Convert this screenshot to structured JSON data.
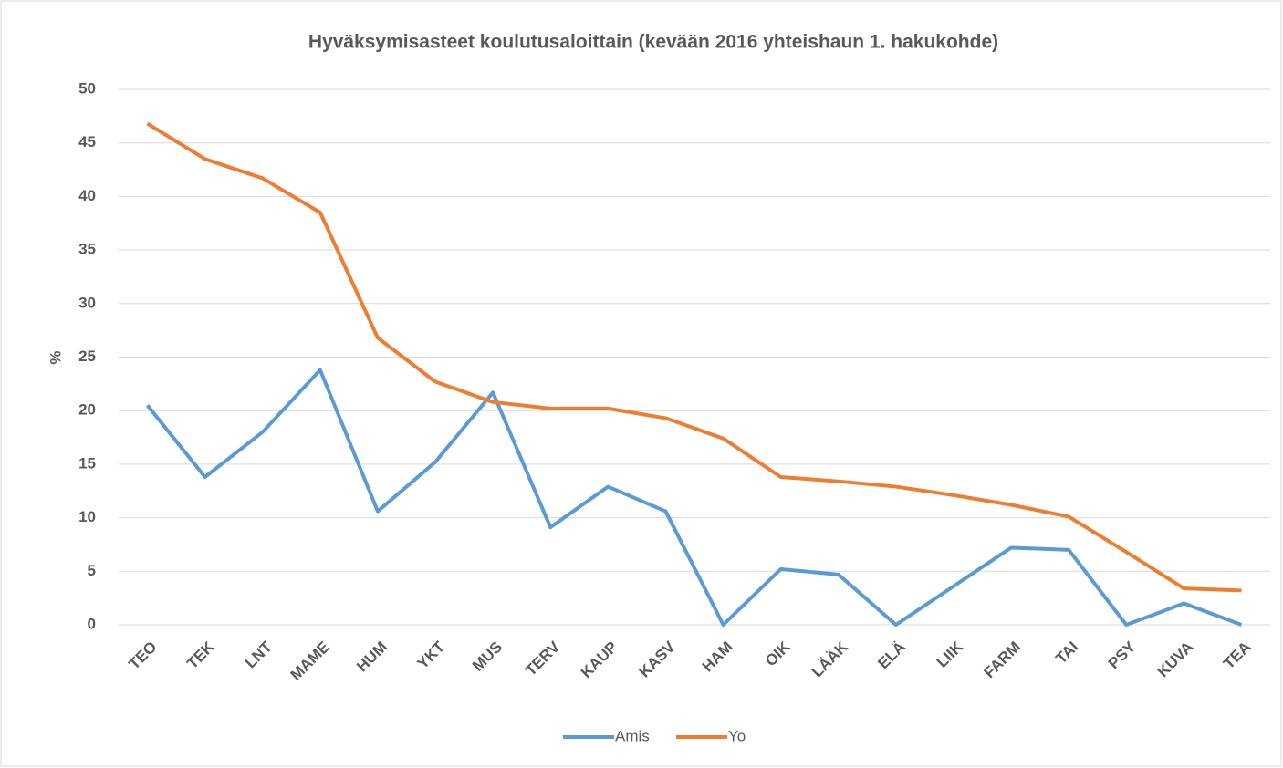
{
  "chart_data": {
    "type": "line",
    "title": "Hyväksymisasteet koulutusaloittain  (kevään 2016 yhteishaun 1. hakukohde)",
    "y_label": "%",
    "categories": [
      "TEO",
      "TEK",
      "LNT",
      "MAME",
      "HUM",
      "YKT",
      "MUS",
      "TERV",
      "KAUP",
      "KASV",
      "HAM",
      "OIK",
      "LÄÄK",
      "ELÄ",
      "LIIK",
      "FARM",
      "TAI",
      "PSY",
      "KUVA",
      "TEA"
    ],
    "series": [
      {
        "name": "Amis",
        "color": "#5b9bd5",
        "values": [
          20.5,
          13.8,
          18.0,
          23.8,
          10.6,
          15.2,
          21.7,
          9.1,
          12.9,
          10.6,
          0,
          5.2,
          4.7,
          0,
          3.6,
          7.2,
          7.0,
          0,
          2.0,
          0
        ]
      },
      {
        "name": "Yo",
        "color": "#ed7d31",
        "values": [
          46.8,
          43.5,
          41.7,
          38.5,
          26.8,
          22.7,
          20.8,
          20.2,
          20.2,
          19.3,
          17.4,
          13.8,
          13.4,
          12.9,
          12.1,
          11.2,
          10.1,
          6.8,
          3.4,
          3.2
        ]
      }
    ],
    "ylim": [
      0,
      50
    ],
    "yticks": [
      0,
      5,
      10,
      15,
      20,
      25,
      30,
      35,
      40,
      45,
      50
    ],
    "grid": true,
    "legend": "bottom"
  }
}
